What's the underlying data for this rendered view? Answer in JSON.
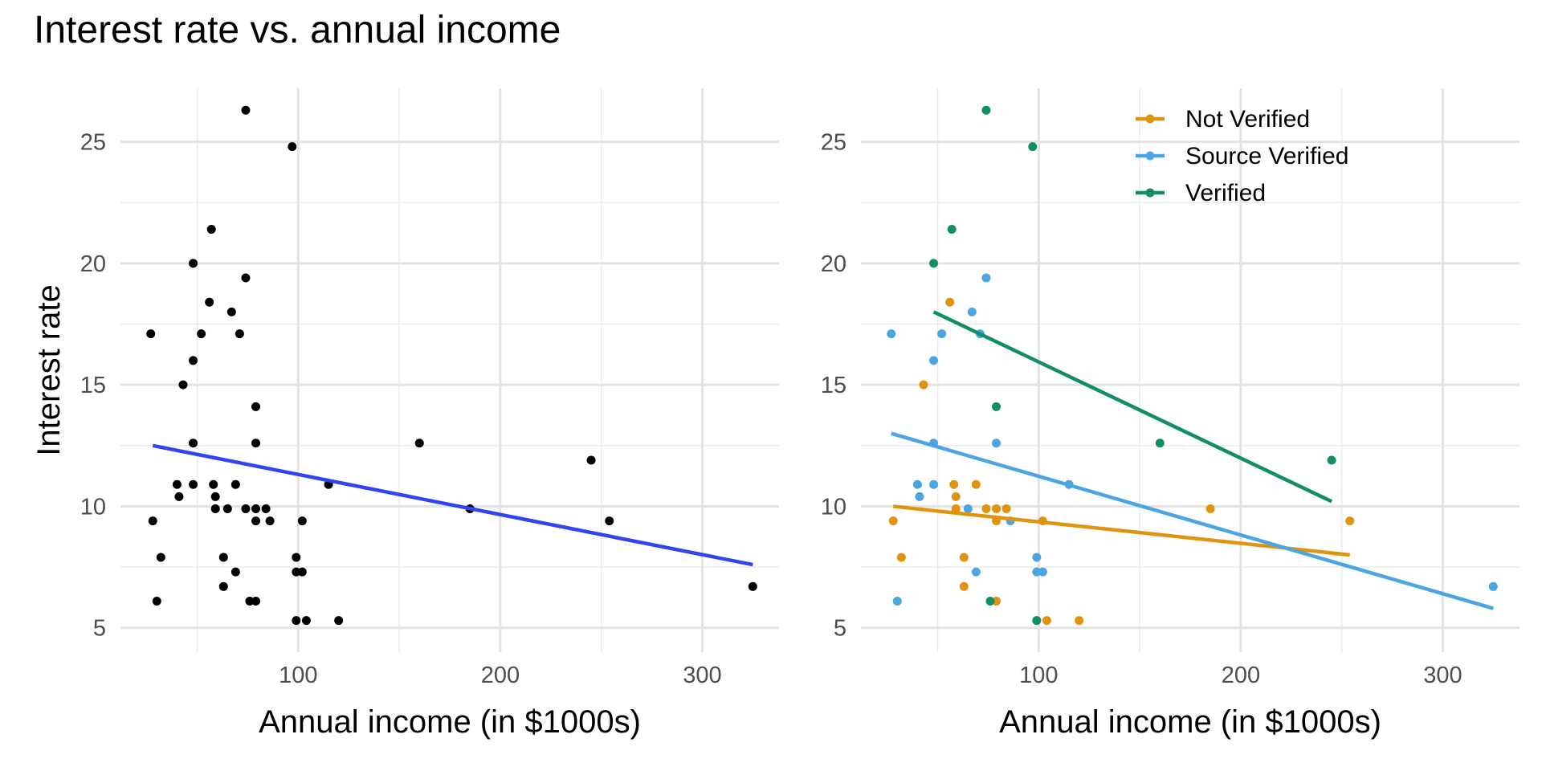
{
  "title": "Interest rate vs. annual income",
  "chart_data": [
    {
      "type": "scatter",
      "panel": "left",
      "xlabel": "Annual income (in $1000s)",
      "ylabel": "Interest rate",
      "xlim": [
        12,
        338
      ],
      "ylim": [
        4.0,
        27.2
      ],
      "x_ticks": [
        100,
        200,
        300
      ],
      "y_ticks": [
        5,
        10,
        15,
        20,
        25
      ],
      "grid": true,
      "point_color": "#000000",
      "points": [
        [
          74,
          26.3
        ],
        [
          97,
          24.8
        ],
        [
          57,
          21.4
        ],
        [
          48,
          20.0
        ],
        [
          74,
          19.4
        ],
        [
          56,
          18.4
        ],
        [
          67,
          18.0
        ],
        [
          27,
          17.1
        ],
        [
          52,
          17.1
        ],
        [
          71,
          17.1
        ],
        [
          48,
          16.0
        ],
        [
          43,
          15.0
        ],
        [
          79,
          14.1
        ],
        [
          48,
          12.6
        ],
        [
          79,
          12.6
        ],
        [
          160,
          12.6
        ],
        [
          245,
          11.9
        ],
        [
          40,
          10.9
        ],
        [
          48,
          10.9
        ],
        [
          58,
          10.9
        ],
        [
          69,
          10.9
        ],
        [
          115,
          10.9
        ],
        [
          41,
          10.4
        ],
        [
          59,
          10.4
        ],
        [
          59,
          9.9
        ],
        [
          65,
          9.9
        ],
        [
          74,
          9.9
        ],
        [
          79,
          9.9
        ],
        [
          84,
          9.9
        ],
        [
          185,
          9.9
        ],
        [
          28,
          9.4
        ],
        [
          79,
          9.4
        ],
        [
          86,
          9.4
        ],
        [
          102,
          9.4
        ],
        [
          254,
          9.4
        ],
        [
          32,
          7.9
        ],
        [
          63,
          7.9
        ],
        [
          99,
          7.9
        ],
        [
          69,
          7.3
        ],
        [
          99,
          7.3
        ],
        [
          102,
          7.3
        ],
        [
          63,
          6.7
        ],
        [
          325,
          6.7
        ],
        [
          30,
          6.1
        ],
        [
          76,
          6.1
        ],
        [
          79,
          6.1
        ],
        [
          99,
          5.3
        ],
        [
          104,
          5.3
        ],
        [
          120,
          5.3
        ]
      ],
      "trend_line": {
        "color": "#3344ee",
        "x": [
          28,
          325
        ],
        "y": [
          12.5,
          7.6
        ]
      }
    },
    {
      "type": "scatter",
      "panel": "right",
      "xlabel": "Annual income (in $1000s)",
      "ylabel": "",
      "xlim": [
        12,
        338
      ],
      "ylim": [
        4.0,
        27.2
      ],
      "x_ticks": [
        100,
        200,
        300
      ],
      "y_ticks": [
        5,
        10,
        15,
        20,
        25
      ],
      "grid": true,
      "legend_position": "top-right",
      "series": [
        {
          "name": "Not Verified",
          "color": "#e0940e",
          "points": [
            [
              56,
              18.4
            ],
            [
              43,
              15.0
            ],
            [
              58,
              10.9
            ],
            [
              69,
              10.9
            ],
            [
              59,
              10.4
            ],
            [
              59,
              9.9
            ],
            [
              74,
              9.9
            ],
            [
              79,
              9.9
            ],
            [
              84,
              9.9
            ],
            [
              185,
              9.9
            ],
            [
              28,
              9.4
            ],
            [
              79,
              9.4
            ],
            [
              102,
              9.4
            ],
            [
              254,
              9.4
            ],
            [
              32,
              7.9
            ],
            [
              63,
              7.9
            ],
            [
              63,
              6.7
            ],
            [
              79,
              6.1
            ],
            [
              104,
              5.3
            ],
            [
              120,
              5.3
            ]
          ],
          "trend_line": {
            "x": [
              28,
              254
            ],
            "y": [
              10.0,
              8.0
            ]
          }
        },
        {
          "name": "Source Verified",
          "color": "#4aa5e0",
          "points": [
            [
              74,
              19.4
            ],
            [
              67,
              18.0
            ],
            [
              27,
              17.1
            ],
            [
              52,
              17.1
            ],
            [
              71,
              17.1
            ],
            [
              48,
              16.0
            ],
            [
              48,
              12.6
            ],
            [
              79,
              12.6
            ],
            [
              115,
              10.9
            ],
            [
              40,
              10.9
            ],
            [
              48,
              10.9
            ],
            [
              41,
              10.4
            ],
            [
              65,
              9.9
            ],
            [
              86,
              9.4
            ],
            [
              99,
              7.9
            ],
            [
              69,
              7.3
            ],
            [
              99,
              7.3
            ],
            [
              102,
              7.3
            ],
            [
              325,
              6.7
            ],
            [
              30,
              6.1
            ]
          ],
          "trend_line": {
            "x": [
              27,
              325
            ],
            "y": [
              13.0,
              5.8
            ]
          }
        },
        {
          "name": "Verified",
          "color": "#138d63",
          "points": [
            [
              74,
              26.3
            ],
            [
              97,
              24.8
            ],
            [
              57,
              21.4
            ],
            [
              48,
              20.0
            ],
            [
              79,
              14.1
            ],
            [
              160,
              12.6
            ],
            [
              245,
              11.9
            ],
            [
              76,
              6.1
            ],
            [
              99,
              5.3
            ]
          ],
          "trend_line": {
            "x": [
              48,
              245
            ],
            "y": [
              18.0,
              10.2
            ]
          }
        }
      ]
    }
  ]
}
